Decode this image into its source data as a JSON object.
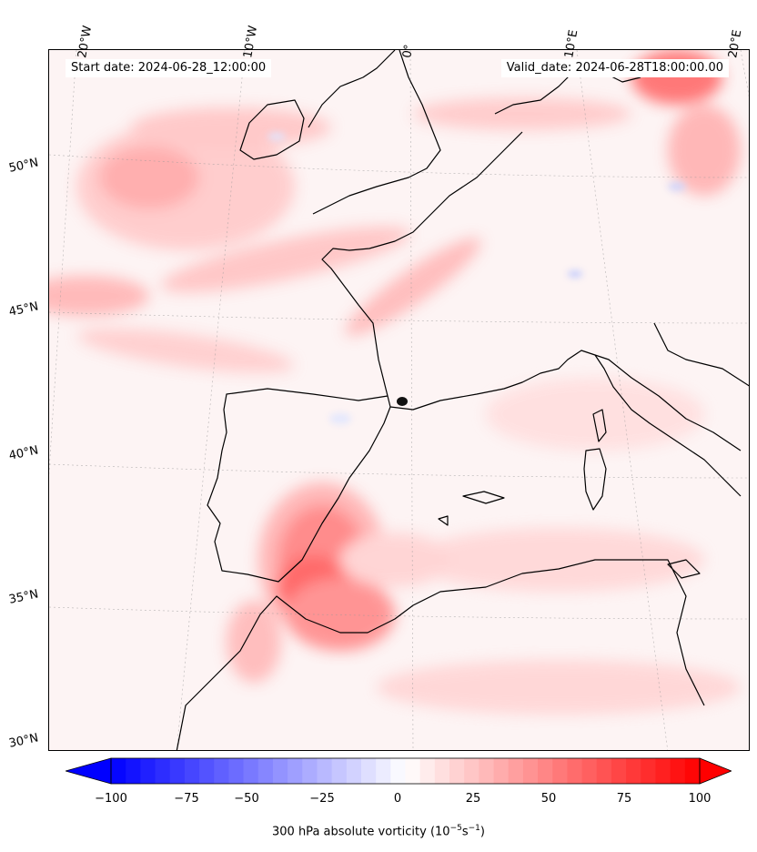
{
  "header": {
    "start_label": "Start date: 2024-06-28_12:00:00",
    "valid_label": "Valid_date: 2024-06-28T18:00:00.00"
  },
  "axes": {
    "lon_ticks": [
      "20°W",
      "10°W",
      "0°",
      "10°E",
      "20°E"
    ],
    "lat_ticks": [
      "50°N",
      "45°N",
      "40°N",
      "35°N",
      "30°N"
    ]
  },
  "colorbar": {
    "label": "300 hPa absolute vorticity (10",
    "label_exp1": "−5",
    "label_mid": "s",
    "label_exp2": "−1",
    "label_end": ")",
    "ticks": [
      "−100",
      "−75",
      "−50",
      "−25",
      "0",
      "25",
      "50",
      "75",
      "100"
    ],
    "min_color": "#0000ff",
    "mid_color": "#ffffff",
    "max_color": "#ff0000"
  },
  "colors": {
    "coastline": "#000000",
    "field_base": "#fdf4f4",
    "strong_positive": "#ff5a5a",
    "moderate_positive": "#ffb8b8"
  }
}
